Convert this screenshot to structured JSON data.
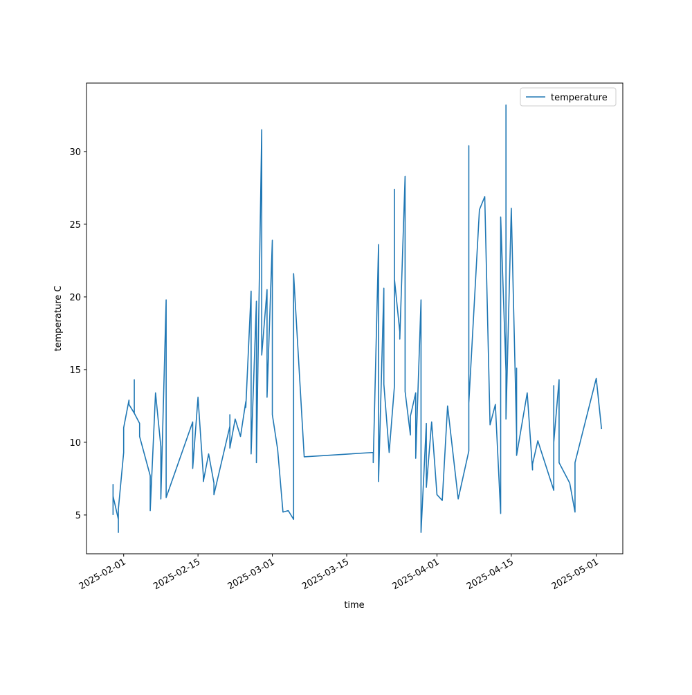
{
  "chart_data": {
    "type": "line",
    "xlabel": "time",
    "ylabel": "temperature C",
    "x": [
      "2025-01-30",
      "2025-01-30",
      "2025-01-30",
      "2025-01-30",
      "2025-01-31",
      "2025-01-31",
      "2025-01-31",
      "2025-01-31",
      "2025-02-01",
      "2025-02-01",
      "2025-02-01",
      "2025-02-02",
      "2025-02-02",
      "2025-02-03",
      "2025-02-03",
      "2025-02-03",
      "2025-02-04",
      "2025-02-04",
      "2025-02-06",
      "2025-02-06",
      "2025-02-07",
      "2025-02-08",
      "2025-02-08",
      "2025-02-09",
      "2025-02-09",
      "2025-02-14",
      "2025-02-14",
      "2025-02-14",
      "2025-02-15",
      "2025-02-16",
      "2025-02-16",
      "2025-02-17",
      "2025-02-18",
      "2025-02-18",
      "2025-02-21",
      "2025-02-21",
      "2025-02-21",
      "2025-02-22",
      "2025-02-23",
      "2025-02-24",
      "2025-02-24",
      "2025-02-25",
      "2025-02-25",
      "2025-02-26",
      "2025-02-26",
      "2025-02-27",
      "2025-02-27",
      "2025-02-28",
      "2025-02-28",
      "2025-02-28",
      "2025-03-01",
      "2025-03-01",
      "2025-03-02",
      "2025-03-03",
      "2025-03-04",
      "2025-03-05",
      "2025-03-05",
      "2025-03-07",
      "2025-03-20",
      "2025-03-20",
      "2025-03-21",
      "2025-03-21",
      "2025-03-22",
      "2025-03-22",
      "2025-03-23",
      "2025-03-24",
      "2025-03-24",
      "2025-03-24",
      "2025-03-25",
      "2025-03-25",
      "2025-03-26",
      "2025-03-26",
      "2025-03-27",
      "2025-03-27",
      "2025-03-28",
      "2025-03-28",
      "2025-03-28",
      "2025-03-29",
      "2025-03-29",
      "2025-03-30",
      "2025-03-30",
      "2025-03-31",
      "2025-04-01",
      "2025-04-02",
      "2025-04-03",
      "2025-04-05",
      "2025-04-07",
      "2025-04-07",
      "2025-04-07",
      "2025-04-07",
      "2025-04-09",
      "2025-04-10",
      "2025-04-11",
      "2025-04-12",
      "2025-04-13",
      "2025-04-13",
      "2025-04-14",
      "2025-04-14",
      "2025-04-14",
      "2025-04-15",
      "2025-04-16",
      "2025-04-16",
      "2025-04-16",
      "2025-04-18",
      "2025-04-19",
      "2025-04-19",
      "2025-04-20",
      "2025-04-23",
      "2025-04-23",
      "2025-04-23",
      "2025-04-24",
      "2025-04-24",
      "2025-04-24",
      "2025-04-26",
      "2025-04-27",
      "2025-04-27",
      "2025-04-27",
      "2025-05-01",
      "2025-05-02"
    ],
    "series": [
      {
        "name": "temperature",
        "color": "#1f77b4",
        "values": [
          5.0,
          6.0,
          7.1,
          6.3,
          4.7,
          3.8,
          5.4,
          5.4,
          9.3,
          9.3,
          11.0,
          12.9,
          12.6,
          12.0,
          14.3,
          12.0,
          11.3,
          10.4,
          7.7,
          5.3,
          13.4,
          9.7,
          6.1,
          19.8,
          6.2,
          11.4,
          10.5,
          8.2,
          13.1,
          7.7,
          7.3,
          9.2,
          7.2,
          6.4,
          11.1,
          11.9,
          9.6,
          11.6,
          10.4,
          12.8,
          12.4,
          20.4,
          9.2,
          19.7,
          8.6,
          31.5,
          16.0,
          20.5,
          13.3,
          13.1,
          23.9,
          11.9,
          9.5,
          5.2,
          5.3,
          4.7,
          21.6,
          9.0,
          9.3,
          8.6,
          23.6,
          7.3,
          20.6,
          14.0,
          9.3,
          13.9,
          27.4,
          21.2,
          17.6,
          17.1,
          28.3,
          13.5,
          10.5,
          11.8,
          13.4,
          9.3,
          8.9,
          19.8,
          3.8,
          11.3,
          6.9,
          11.4,
          6.4,
          6.0,
          12.5,
          6.1,
          9.4,
          10.3,
          30.4,
          12.7,
          26.0,
          26.9,
          11.2,
          12.6,
          5.1,
          25.5,
          14.9,
          33.2,
          11.6,
          26.1,
          10.5,
          15.1,
          9.1,
          13.4,
          8.1,
          8.5,
          10.1,
          6.7,
          13.9,
          10.0,
          14.3,
          12.8,
          8.6,
          7.2,
          5.2,
          6.8,
          8.6,
          14.4,
          10.9
        ]
      }
    ],
    "xlim": [
      "2025-01-25",
      "2025-05-06"
    ],
    "xticks": [
      "2025-02-01",
      "2025-02-15",
      "2025-03-01",
      "2025-03-15",
      "2025-04-01",
      "2025-04-15",
      "2025-05-01"
    ],
    "ylim": [
      2.33,
      34.71
    ],
    "yticks": [
      5,
      10,
      15,
      20,
      25,
      30
    ],
    "legend": "upper right"
  }
}
